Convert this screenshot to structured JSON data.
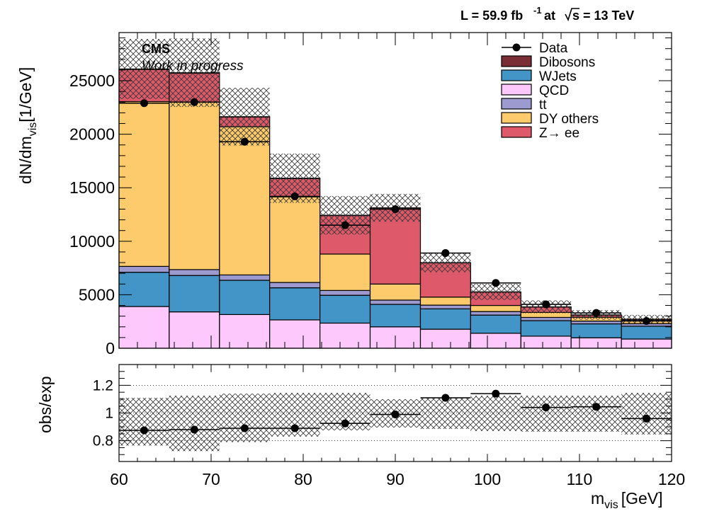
{
  "header": {
    "lumi_label": "L = 59.9 fb",
    "lumi_exp": "-1",
    "lumi_at": "at",
    "energy_label": "s = 13 TeV",
    "experiment": "CMS",
    "status": "Work in progress"
  },
  "colors": {
    "Dibosons": "#7b2d36",
    "WJets": "#4395c8",
    "QCD": "#fdc9fd",
    "tt": "#9c9ace",
    "DY others": "#fdcb6b",
    "Z→ ee": "#de5a6a",
    "data": "#000000",
    "uncertainty_hatch": "#333333"
  },
  "chart_data": [
    {
      "type": "stacked-histogram",
      "ylabel": "dN/dm",
      "ylabel_sub": "vis",
      "ylabel_unit": "[1/GeV]",
      "xlim": [
        60,
        120
      ],
      "ylim": [
        0,
        29500
      ],
      "yticks": [
        0,
        5000,
        10000,
        15000,
        20000,
        25000
      ],
      "bin_edges": [
        60,
        65.45,
        70.91,
        76.36,
        81.82,
        87.27,
        92.73,
        98.18,
        103.64,
        109.09,
        114.55,
        120
      ],
      "legend_position": "top-right",
      "series": [
        {
          "name": "QCD",
          "values": [
            3900,
            3400,
            3150,
            2650,
            2350,
            2000,
            1780,
            1400,
            1130,
            980,
            860
          ]
        },
        {
          "name": "WJets",
          "values": [
            3200,
            3400,
            3200,
            3000,
            2600,
            2100,
            1900,
            1700,
            1450,
            1300,
            1200
          ]
        },
        {
          "name": "tt",
          "values": [
            550,
            550,
            500,
            500,
            450,
            400,
            350,
            330,
            300,
            260,
            240
          ]
        },
        {
          "name": "DY others",
          "values": [
            15400,
            15650,
            13850,
            8000,
            3400,
            1500,
            750,
            570,
            470,
            360,
            300
          ]
        },
        {
          "name": "Z→ ee",
          "values": [
            3000,
            2700,
            900,
            1700,
            3600,
            7100,
            3200,
            1250,
            500,
            200,
            100
          ]
        },
        {
          "name": "Dibosons",
          "values": [
            50,
            50,
            40,
            40,
            30,
            30,
            20,
            20,
            20,
            20,
            20
          ]
        }
      ],
      "total_uncertainty": [
        2800,
        3200,
        2700,
        2300,
        1800,
        1300,
        900,
        750,
        600,
        450,
        400
      ],
      "data_series": {
        "name": "Data",
        "x": [
          62.73,
          68.18,
          73.64,
          79.09,
          84.55,
          90.0,
          95.45,
          100.91,
          106.36,
          111.82,
          117.27
        ],
        "y": [
          22900,
          23000,
          19300,
          14200,
          11500,
          13000,
          8900,
          6100,
          4100,
          3300,
          2550
        ]
      },
      "legend": [
        {
          "label": "Data",
          "kind": "marker"
        },
        {
          "label": "Dibosons",
          "kind": "box"
        },
        {
          "label": "WJets",
          "kind": "box"
        },
        {
          "label": "QCD",
          "kind": "box"
        },
        {
          "label": "tt",
          "kind": "box"
        },
        {
          "label": "DY others",
          "kind": "box"
        },
        {
          "label": "Z→ ee",
          "kind": "box"
        }
      ]
    },
    {
      "type": "ratio",
      "ylabel": "obs/exp",
      "xlabel": "m",
      "xlabel_sub": "vis",
      "xlabel_unit": "[GeV]",
      "xlim": [
        60,
        120
      ],
      "ylim": [
        0.65,
        1.35
      ],
      "yticks": [
        0.8,
        1,
        1.2
      ],
      "ytick_labels": [
        "0.8",
        "1",
        "1.2"
      ],
      "xticks": [
        60,
        70,
        80,
        90,
        100,
        110,
        120
      ],
      "gridlines": [
        0.8,
        1.0,
        1.2
      ],
      "x": [
        62.73,
        68.18,
        73.64,
        79.09,
        84.55,
        90.0,
        95.45,
        100.91,
        106.36,
        111.82,
        117.27
      ],
      "y": [
        0.875,
        0.88,
        0.89,
        0.89,
        0.925,
        0.99,
        1.11,
        1.14,
        1.04,
        1.045,
        0.96
      ],
      "uncertainty_band": [
        [
          0.765,
          1.11
        ],
        [
          0.725,
          1.125
        ],
        [
          0.79,
          1.14
        ],
        [
          0.83,
          1.145
        ],
        [
          0.875,
          1.145
        ],
        [
          0.895,
          1.1
        ],
        [
          0.885,
          1.11
        ],
        [
          0.87,
          1.125
        ],
        [
          0.865,
          1.125
        ],
        [
          0.865,
          1.125
        ],
        [
          0.845,
          1.145
        ]
      ]
    }
  ]
}
